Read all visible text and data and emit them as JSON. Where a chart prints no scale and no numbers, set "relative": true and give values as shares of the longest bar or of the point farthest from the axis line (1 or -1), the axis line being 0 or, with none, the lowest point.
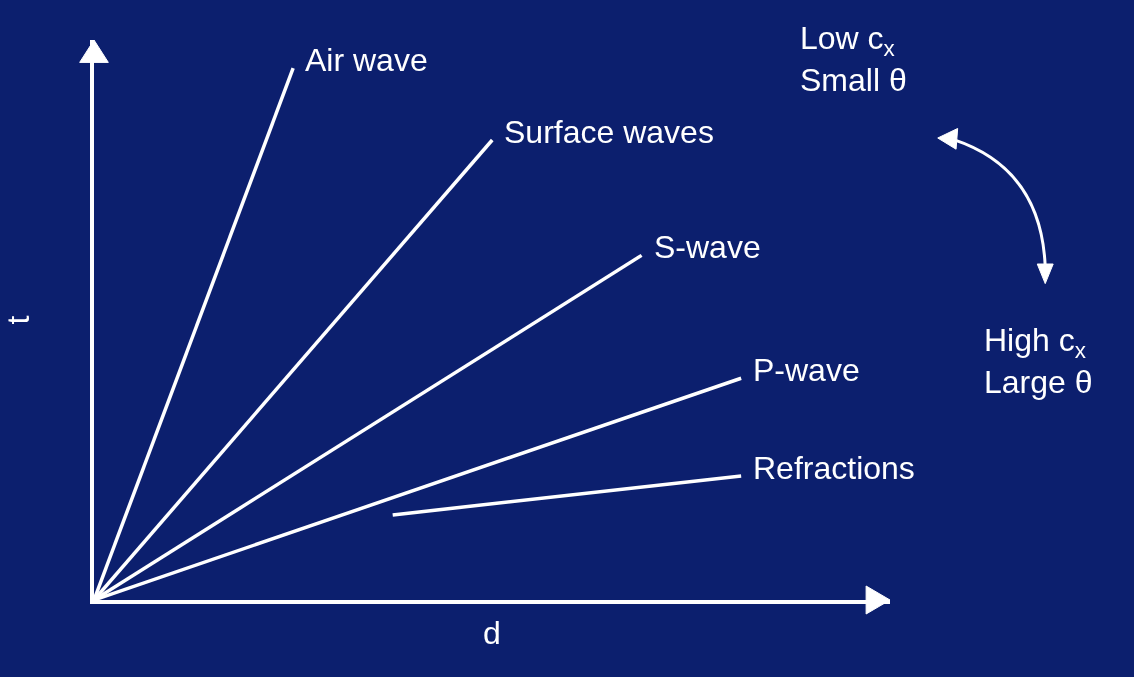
{
  "chart_data": {
    "type": "line",
    "relative": true,
    "xlabel": "d",
    "ylabel": "t",
    "legend": false,
    "grid": false,
    "line_style": "solid",
    "marker": "none",
    "categories": [
      null,
      null,
      null,
      null,
      null,
      null,
      null,
      null,
      null,
      null,
      null,
      null,
      null,
      null
    ],
    "series": [
      {
        "name": "Air wave",
        "color": "#ffffff",
        "values": [
          0,
          null,
          null,
          null,
          1,
          null,
          null,
          null,
          null,
          null,
          null,
          null,
          null,
          null
        ]
      },
      {
        "name": "Surface waves",
        "color": "#ffffff",
        "values": [
          0,
          null,
          null,
          null,
          null,
          null,
          null,
          null,
          0.865,
          null,
          null,
          null,
          null,
          null
        ]
      },
      {
        "name": "S-wave",
        "color": "#ffffff",
        "values": [
          0,
          null,
          null,
          null,
          null,
          null,
          null,
          null,
          null,
          null,
          null,
          0.648,
          null,
          null
        ]
      },
      {
        "name": "P-wave",
        "color": "#ffffff",
        "values": [
          0,
          null,
          null,
          null,
          null,
          null,
          null,
          null,
          null,
          null,
          null,
          null,
          null,
          0.417
        ]
      },
      {
        "name": "Refractions",
        "color": "#ffffff",
        "values": [
          null,
          null,
          null,
          null,
          null,
          null,
          0.16,
          null,
          null,
          null,
          null,
          null,
          null,
          0.233
        ]
      }
    ],
    "annotations": [
      "Low c$_{x}$\nSmall θ",
      "High c$_{x}$\nLarge θ"
    ]
  }
}
